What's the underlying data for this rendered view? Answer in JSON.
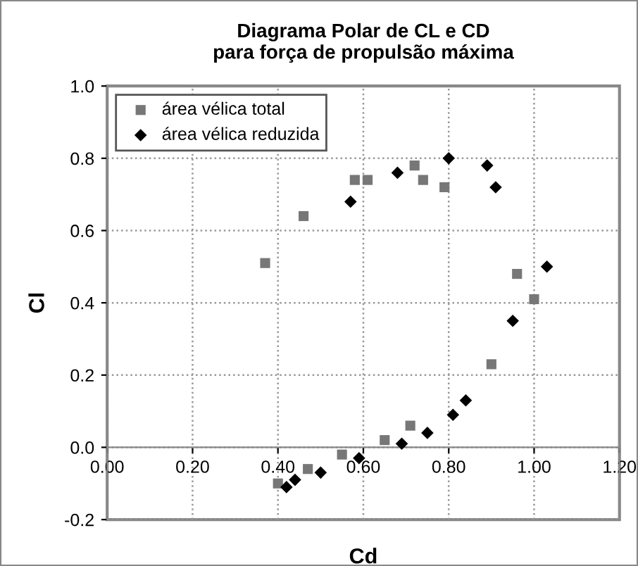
{
  "chart_data": {
    "type": "scatter",
    "title": "Diagrama Polar de CL e CD\npara força de propulsão máxima",
    "xlabel": "Cd",
    "ylabel": "Cl",
    "series": [
      {
        "name": "área vélica total",
        "color": "#777777",
        "marker": "square",
        "x": [
          0.37,
          0.46,
          0.58,
          0.61,
          0.72,
          0.74,
          0.79,
          0.96,
          1.0,
          0.9,
          0.71,
          0.65,
          0.55,
          0.47,
          0.4
        ],
        "values": [
          0.51,
          0.64,
          0.74,
          0.74,
          0.78,
          0.74,
          0.72,
          0.48,
          0.41,
          0.23,
          0.06,
          0.02,
          -0.02,
          -0.06,
          -0.1
        ]
      },
      {
        "name": "área vélica reduzida",
        "color": "#000000",
        "marker": "diamond",
        "x": [
          0.57,
          0.68,
          0.8,
          0.89,
          0.91,
          1.03,
          0.95,
          0.84,
          0.81,
          0.75,
          0.69,
          0.59,
          0.5,
          0.44,
          0.42
        ],
        "values": [
          0.68,
          0.76,
          0.8,
          0.78,
          0.72,
          0.5,
          0.35,
          0.13,
          0.09,
          0.04,
          0.01,
          -0.03,
          -0.07,
          -0.09,
          -0.11
        ]
      }
    ],
    "xlim": [
      0,
      1.2
    ],
    "xticks": [
      {
        "value": 0,
        "label": "0.00"
      },
      {
        "value": 0.2,
        "label": "0.20"
      },
      {
        "value": 0.4,
        "label": "0.40"
      },
      {
        "value": 0.6,
        "label": "0.60"
      },
      {
        "value": 0.8,
        "label": "0.80"
      },
      {
        "value": 1.0,
        "label": "1.00"
      },
      {
        "value": 1.2,
        "label": "1.20"
      }
    ],
    "ylim": [
      -0.2,
      1.0
    ],
    "yticks": [
      {
        "value": -0.2,
        "label": "-0.2"
      },
      {
        "value": 0,
        "label": "0.0"
      },
      {
        "value": 0.2,
        "label": "0.2"
      },
      {
        "value": 0.4,
        "label": "0.4"
      },
      {
        "value": 0.6,
        "label": "0.6"
      },
      {
        "value": 0.8,
        "label": "0.8"
      },
      {
        "value": 1.0,
        "label": "1.0"
      }
    ],
    "grid": true,
    "legend": "top left"
  }
}
